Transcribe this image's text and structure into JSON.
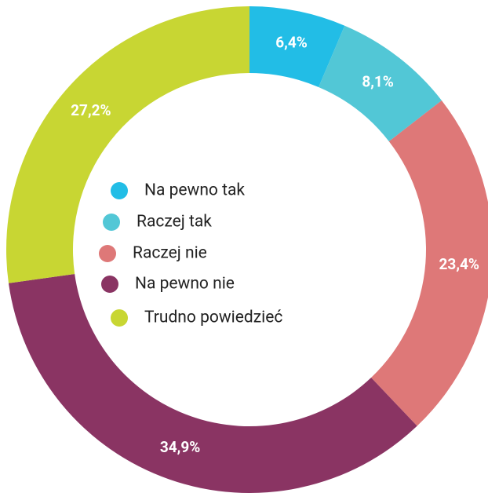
{
  "chart_data": {
    "type": "donut",
    "categories": [
      "Na pewno tak",
      "Raczej tak",
      "Raczej nie",
      "Na pewno nie",
      "Trudno powiedzieć"
    ],
    "values": [
      6.4,
      8.1,
      23.4,
      34.9,
      27.2
    ],
    "value_labels": [
      "6,4%",
      "8,1%",
      "23,4%",
      "34,9%",
      "27,2%"
    ],
    "colors": [
      "#22bde6",
      "#52c7d6",
      "#de7878",
      "#8a3463",
      "#c8d633"
    ]
  }
}
